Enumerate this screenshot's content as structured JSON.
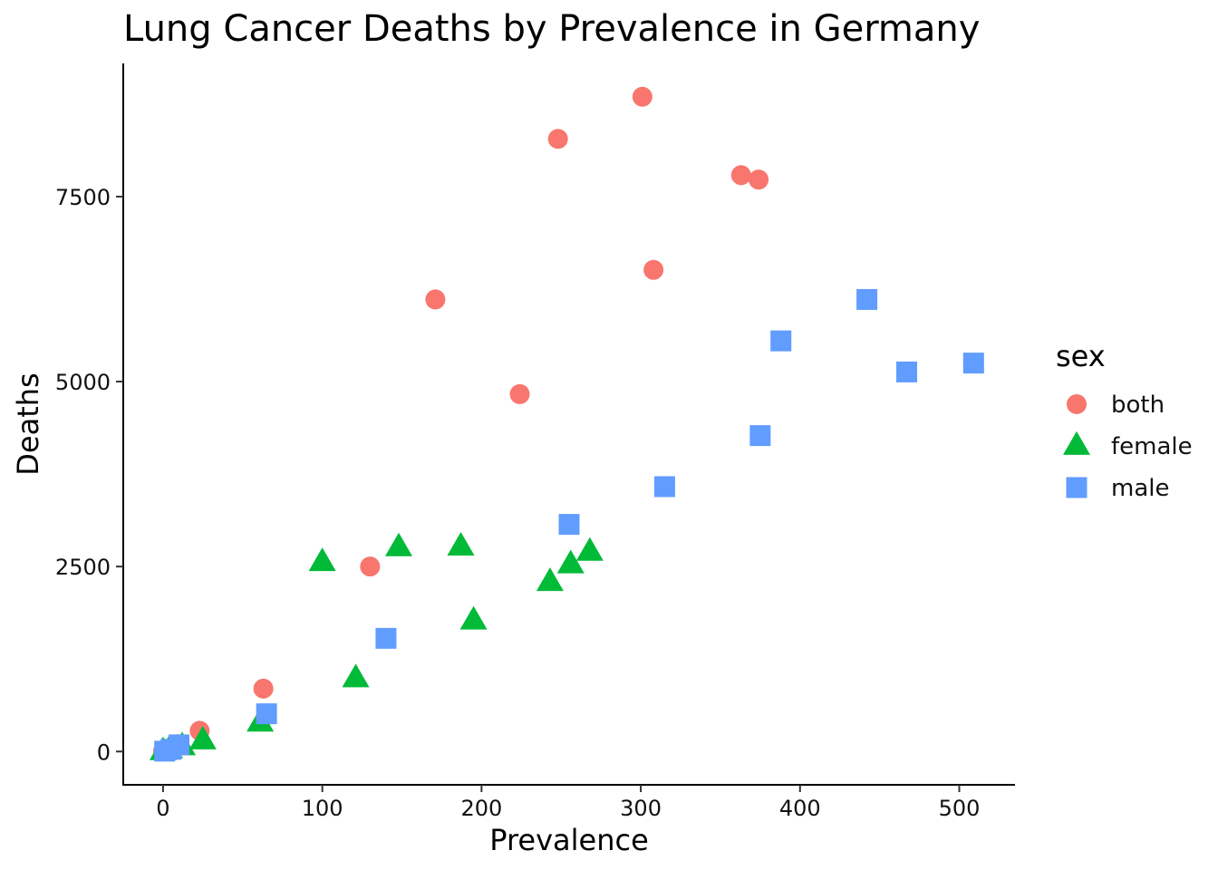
{
  "chart_data": {
    "type": "scatter",
    "title": "Lung Cancer Deaths by Prevalence in Germany",
    "xlabel": "Prevalence",
    "ylabel": "Deaths",
    "xlim": [
      -25,
      535
    ],
    "ylim": [
      -450,
      9300
    ],
    "x_ticks": [
      0,
      100,
      200,
      300,
      400,
      500
    ],
    "y_ticks": [
      0,
      2500,
      5000,
      7500
    ],
    "grid": false,
    "legend": {
      "title": "sex",
      "position": "right",
      "entries": [
        "both",
        "female",
        "male"
      ]
    },
    "series": [
      {
        "name": "both",
        "shape": "circle",
        "color": "#F8766D",
        "points": [
          [
            301,
            8850
          ],
          [
            248,
            8280
          ],
          [
            363,
            7790
          ],
          [
            374,
            7730
          ],
          [
            308,
            6510
          ],
          [
            171,
            6110
          ],
          [
            224,
            4830
          ],
          [
            130,
            2500
          ],
          [
            63,
            850
          ],
          [
            23,
            280
          ],
          [
            9,
            100
          ],
          [
            2,
            20
          ],
          [
            0,
            5
          ]
        ]
      },
      {
        "name": "female",
        "shape": "triangle",
        "color": "#00BA38",
        "points": [
          [
            148,
            2760
          ],
          [
            187,
            2770
          ],
          [
            100,
            2560
          ],
          [
            268,
            2700
          ],
          [
            256,
            2530
          ],
          [
            243,
            2290
          ],
          [
            195,
            1770
          ],
          [
            121,
            990
          ],
          [
            61,
            390
          ],
          [
            25,
            150
          ],
          [
            12,
            70
          ],
          [
            4,
            30
          ],
          [
            0,
            5
          ]
        ]
      },
      {
        "name": "male",
        "shape": "square",
        "color": "#619CFF",
        "points": [
          [
            442,
            6110
          ],
          [
            388,
            5550
          ],
          [
            509,
            5250
          ],
          [
            467,
            5130
          ],
          [
            375,
            4270
          ],
          [
            315,
            3580
          ],
          [
            255,
            3070
          ],
          [
            140,
            1530
          ],
          [
            65,
            510
          ],
          [
            10,
            90
          ],
          [
            5,
            30
          ],
          [
            1,
            5
          ]
        ]
      }
    ]
  }
}
